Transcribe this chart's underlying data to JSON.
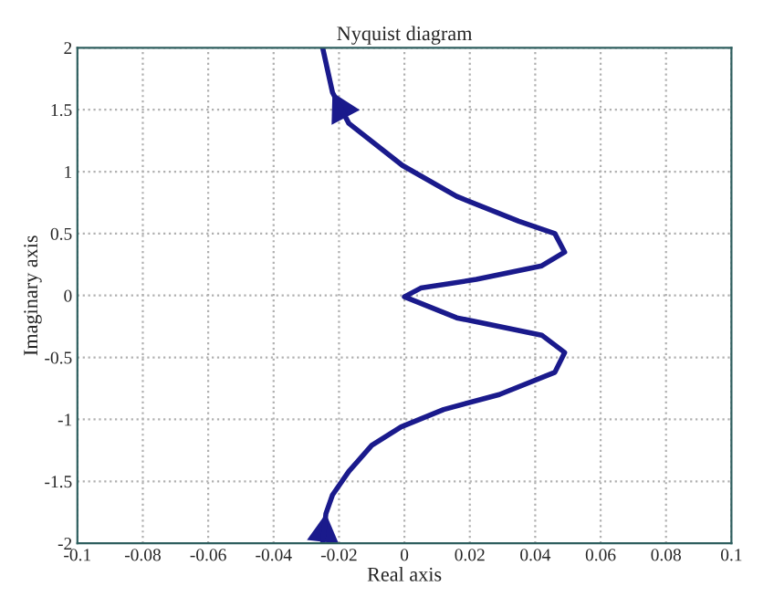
{
  "chart_data": {
    "type": "line",
    "title": "Nyquist diagram",
    "xlabel": "Real axis",
    "ylabel": "Imaginary axis",
    "xlim": [
      -0.1,
      0.1
    ],
    "xticks": [
      -0.1,
      -0.08,
      -0.06,
      -0.04,
      -0.02,
      0,
      0.02,
      0.04,
      0.06,
      0.08,
      0.1
    ],
    "ylim": [
      -2,
      2
    ],
    "yticks": [
      -2,
      -1.5,
      -1,
      -0.5,
      0,
      0.5,
      1,
      1.5,
      2
    ],
    "grid": true,
    "line_style": "solid",
    "series": [
      {
        "color": "#1a1a8c",
        "x": [
          -0.025,
          -0.024,
          -0.022,
          -0.017,
          -0.01,
          -0.001,
          0.012,
          0.029,
          0.046,
          0.049,
          0.042,
          0.016,
          0.0,
          0.005,
          0.022,
          0.042,
          0.049,
          0.046,
          0.035,
          0.016,
          -0.0006,
          -0.017,
          -0.022,
          -0.025
        ],
        "values": [
          -2,
          -1.76,
          -1.61,
          -1.42,
          -1.21,
          -1.06,
          -0.92,
          -0.8,
          -0.62,
          -0.46,
          -0.32,
          -0.18,
          -0.01,
          0.06,
          0.13,
          0.24,
          0.35,
          0.5,
          0.6,
          0.8,
          1.05,
          1.39,
          1.64,
          2
        ]
      }
    ]
  }
}
